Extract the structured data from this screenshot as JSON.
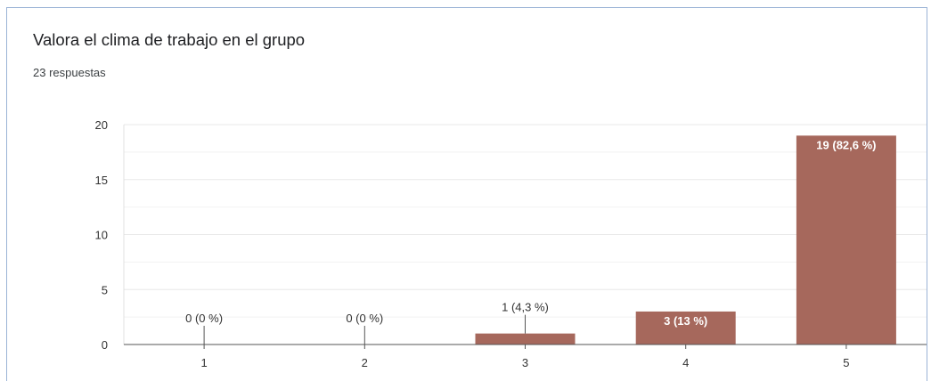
{
  "question": {
    "title": "Valora el clima de trabajo en el grupo",
    "responses": "23 respuestas"
  },
  "colors": {
    "bar": "#a6685c",
    "grid": "#e8e8e8",
    "axis": "#555555",
    "label_dark": "#333333",
    "label_light": "#ffffff"
  },
  "chart_data": {
    "type": "bar",
    "categories": [
      "1",
      "2",
      "3",
      "4",
      "5"
    ],
    "values": [
      0,
      0,
      1,
      3,
      19
    ],
    "data_labels": [
      "0 (0 %)",
      "0 (0 %)",
      "1 (4,3 %)",
      "3 (13 %)",
      "19 (82,6 %)"
    ],
    "ylim": [
      0,
      20
    ],
    "yticks": [
      "0",
      "5",
      "10",
      "15",
      "20"
    ],
    "grid": true,
    "xlabel": "",
    "ylabel": ""
  }
}
